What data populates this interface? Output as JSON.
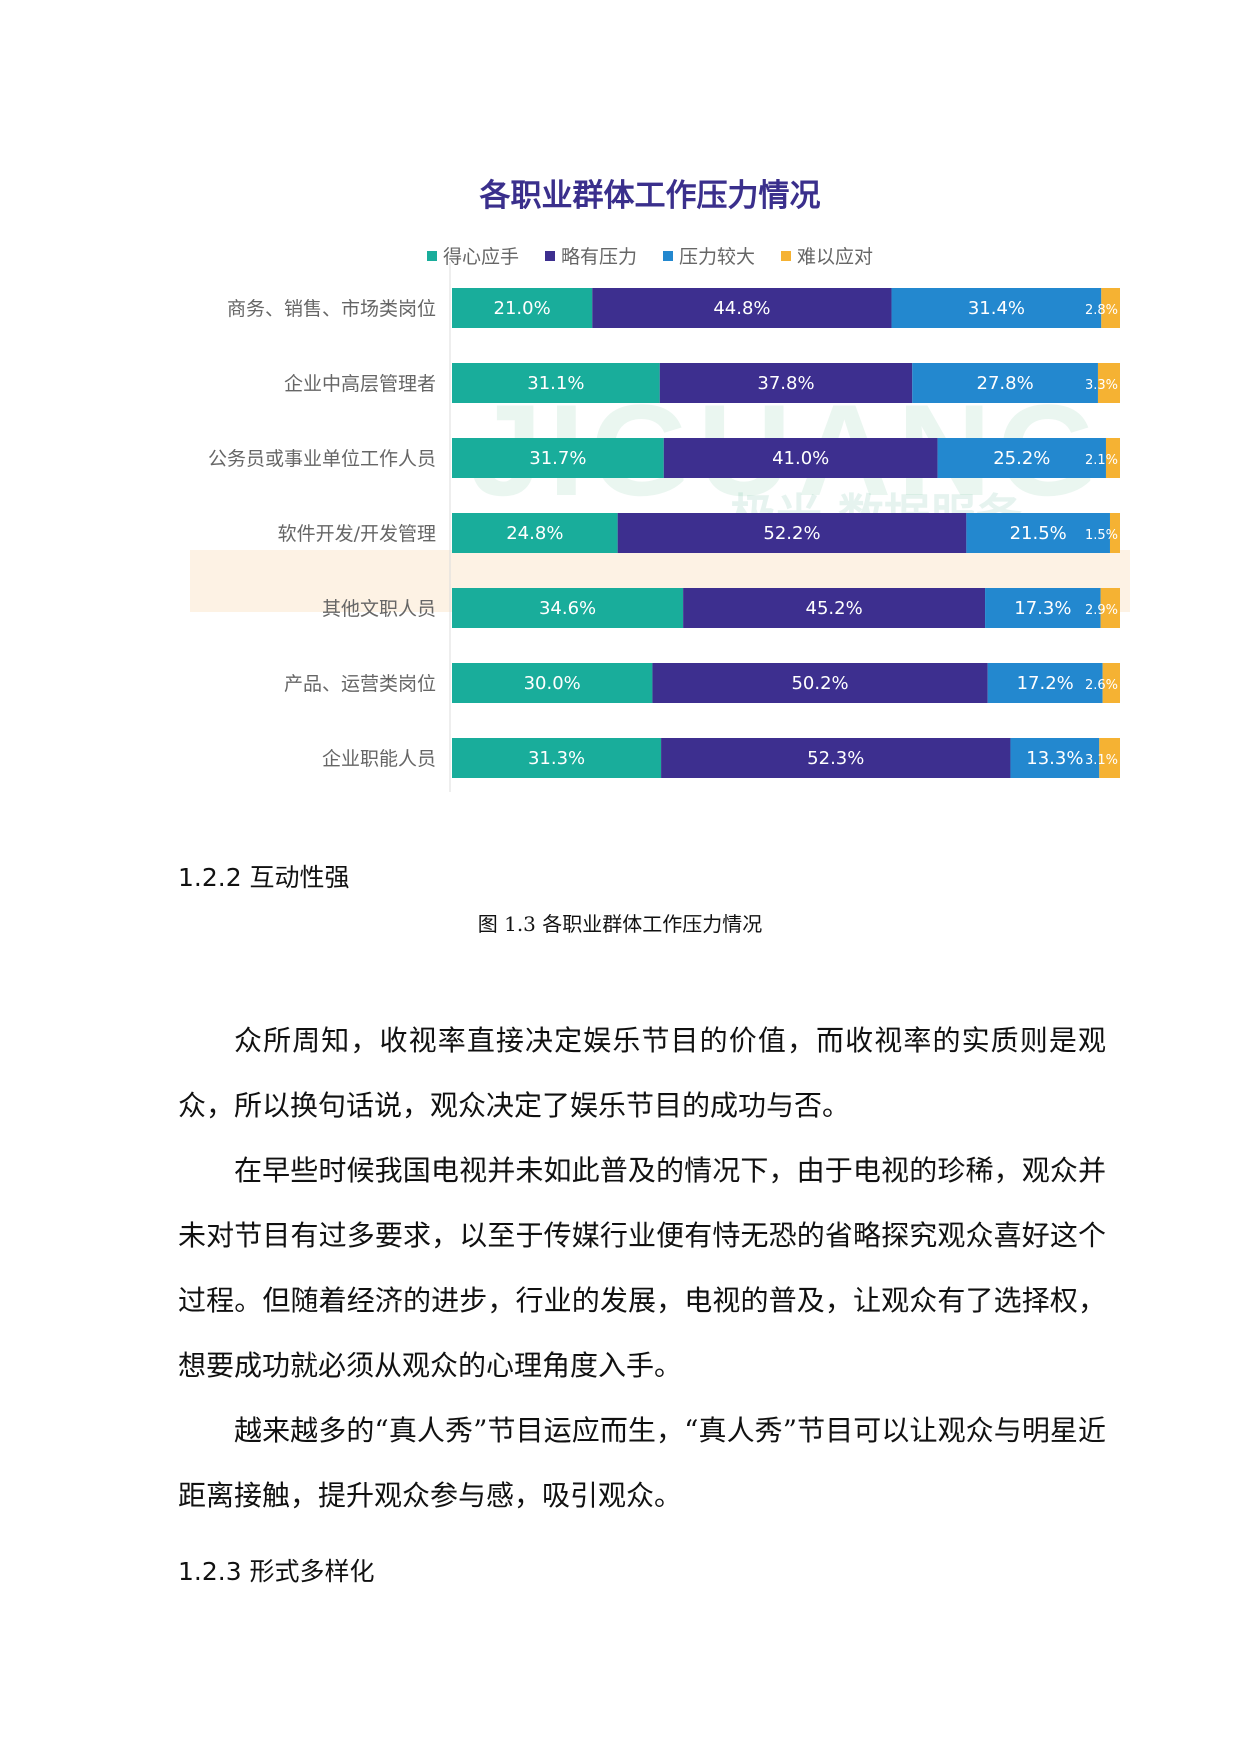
{
  "chart_data": {
    "type": "bar",
    "orientation": "horizontal",
    "stacked": true,
    "title": "各职业群体工作压力情况",
    "legend_position": "top",
    "categories": [
      "商务、销售、市场类岗位",
      "企业中高层管理者",
      "公务员或事业单位工作人员",
      "软件开发/开发管理",
      "其他文职人员",
      "产品、运营类岗位",
      "企业职能人员"
    ],
    "series": [
      {
        "name": "得心应手",
        "color": "#19ad9b",
        "values": [
          21.0,
          31.1,
          31.7,
          24.8,
          34.6,
          30.0,
          31.3
        ]
      },
      {
        "name": "略有压力",
        "color": "#3d2f8f",
        "values": [
          44.8,
          37.8,
          41.0,
          52.2,
          45.2,
          50.2,
          52.3
        ]
      },
      {
        "name": "压力较大",
        "color": "#2388cf",
        "values": [
          31.4,
          27.8,
          25.2,
          21.5,
          17.3,
          17.2,
          13.3
        ]
      },
      {
        "name": "难以应对",
        "color": "#f5b233",
        "values": [
          2.8,
          3.3,
          2.1,
          1.5,
          2.9,
          2.6,
          3.1
        ]
      }
    ],
    "labels": [
      [
        "21.0%",
        "31.1%",
        "31.7%",
        "24.8%",
        "34.6%",
        "30.0%",
        "31.3%"
      ],
      [
        "44.8%",
        "37.8%",
        "41.0%",
        "52.2%",
        "45.2%",
        "50.2%",
        "52.3%"
      ],
      [
        "31.4%",
        "27.8%",
        "25.2%",
        "21.5%",
        "17.3%",
        "17.2%",
        "13.3%"
      ],
      [
        "2.8%",
        "3.3%",
        "2.1%",
        "1.5%",
        "2.9%",
        "2.6%",
        "3.1%"
      ]
    ],
    "xlim": [
      0,
      100
    ]
  },
  "watermark": {
    "text": "JIGUANG",
    "subtext": "极光 数据服务"
  },
  "caption": "图 1.3 各职业群体工作压力情况",
  "heading1": "1.2.2 互动性强",
  "paragraphs": [
    "众所周知，收视率直接决定娱乐节目的价值，而收视率的实质则是观众，所以换句话说，观众决定了娱乐节目的成功与否。",
    "在早些时候我国电视并未如此普及的情况下，由于电视的珍稀，观众并未对节目有过多要求，以至于传媒行业便有恃无恐的省略探究观众喜好这个过程。但随着经济的进步，行业的发展，电视的普及，让观众有了选择权，想要成功就必须从观众的心理角度入手。",
    "越来越多的“真人秀”节目运应而生，“真人秀”节目可以让观众与明星近距离接触，提升观众参与感，吸引观众。"
  ],
  "heading2": "1.2.3 形式多样化"
}
